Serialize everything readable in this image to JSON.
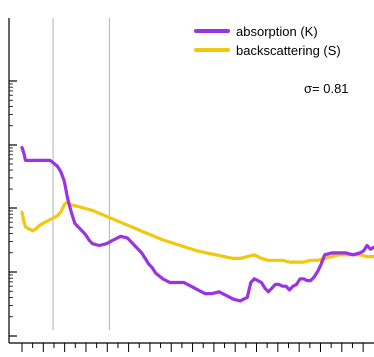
{
  "chart_data": {
    "type": "line",
    "title": "",
    "xlabel": "",
    "ylabel": "",
    "xlim": [
      0,
      100
    ],
    "ylim": [
      0,
      100
    ],
    "grid": false,
    "legend_position": "top-right",
    "annotation": {
      "symbol": "σ",
      "text": "= 0.81"
    },
    "reference_lines_x": [
      4,
      20
    ],
    "series": [
      {
        "name": "absorption (K)",
        "color": "#9a32e6",
        "x": [
          0,
          0.5,
          1,
          2,
          3,
          4,
          6,
          8,
          10,
          11,
          12,
          13,
          14,
          15,
          16,
          17,
          18,
          19,
          20,
          22,
          24,
          26,
          28,
          30,
          31,
          32,
          33,
          34,
          35,
          36,
          37,
          38,
          40,
          42,
          44,
          46,
          48,
          50,
          52,
          54,
          56,
          58,
          60,
          62,
          63,
          64,
          65,
          66,
          67,
          68,
          69,
          70,
          71,
          72,
          73,
          74,
          75,
          76,
          77,
          78,
          79,
          80,
          81,
          82,
          83,
          84,
          85,
          86,
          88,
          90,
          92,
          94,
          96,
          97,
          98,
          99,
          100
        ],
        "y": [
          83,
          80,
          76,
          76,
          76,
          76,
          76,
          76,
          73,
          70,
          65,
          55,
          48,
          42,
          40,
          38,
          36,
          33,
          31,
          30,
          31,
          33,
          35,
          34,
          32,
          30,
          28,
          26,
          23,
          20,
          18,
          15,
          12,
          10,
          10,
          10,
          8,
          6,
          4,
          4,
          5,
          3,
          1,
          0,
          1,
          2,
          10,
          12,
          11,
          10,
          7,
          5,
          7,
          9,
          9,
          8,
          8,
          6,
          8,
          9,
          12,
          12,
          11,
          11,
          13,
          16,
          20,
          25,
          26,
          26,
          26,
          25,
          26,
          27,
          30,
          28,
          29
        ]
      },
      {
        "name": "backscattering (S)",
        "color": "#f2c80e",
        "x": [
          0,
          0.5,
          1,
          2,
          3,
          4,
          5,
          6,
          7,
          8,
          9,
          10,
          11,
          12,
          12.5,
          13,
          14,
          16,
          18,
          20,
          25,
          30,
          35,
          40,
          45,
          50,
          55,
          60,
          62,
          64,
          66,
          68,
          70,
          72,
          74,
          76,
          78,
          80,
          82,
          84,
          86,
          88,
          90,
          92,
          94,
          96,
          98,
          100
        ],
        "y": [
          48,
          43,
          40,
          39,
          38,
          39,
          41,
          42,
          43,
          44,
          45,
          46,
          48,
          52,
          53,
          53,
          52,
          51,
          50,
          49,
          45,
          41,
          37,
          33,
          30,
          27,
          25,
          23,
          23,
          24,
          25,
          23,
          22,
          22,
          22,
          21,
          21,
          21,
          22,
          22,
          23,
          24,
          25,
          25,
          25,
          25,
          24,
          24
        ]
      }
    ],
    "colors": {
      "axis": "#000000",
      "reference_line": "#b0b0b0",
      "background": "#ffffff"
    }
  }
}
